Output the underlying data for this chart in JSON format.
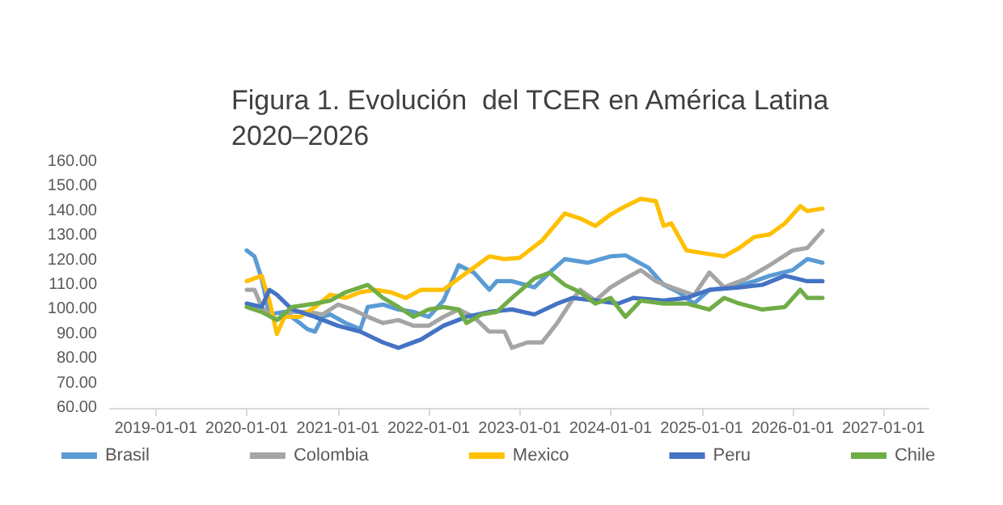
{
  "chart_data": {
    "type": "line",
    "title": "Figura 1. Evolución  del TCER en América Latina\n2020–2026",
    "xlim": [
      "2018-07",
      "2027-07"
    ],
    "xticks": [
      "2019-01-01",
      "2020-01-01",
      "2021-01-01",
      "2022-01-01",
      "2023-01-01",
      "2024-01-01",
      "2025-01-01",
      "2026-01-01",
      "2027-01-01"
    ],
    "ylim": [
      60,
      160
    ],
    "yticks": [
      {
        "value": 60,
        "label": "60.00"
      },
      {
        "value": 70,
        "label": "70.00"
      },
      {
        "value": 80,
        "label": "80.00"
      },
      {
        "value": 90,
        "label": "90.00"
      },
      {
        "value": 100,
        "label": "100.00"
      },
      {
        "value": 110,
        "label": "110.00"
      },
      {
        "value": 120,
        "label": "120.00"
      },
      {
        "value": 130,
        "label": "130.00"
      },
      {
        "value": 140,
        "label": "140.00"
      },
      {
        "value": 150,
        "label": "150.00"
      },
      {
        "value": 160,
        "label": "160.00"
      }
    ],
    "grid": false,
    "legend": "bottom",
    "marker": "none",
    "line_style": "solid",
    "series": [
      {
        "name": "Brasil",
        "color": "#5b9bd5",
        "x": [
          "2020-01",
          "2020-02",
          "2020-03",
          "2020-04",
          "2020-06",
          "2020-08",
          "2020-09",
          "2020-10",
          "2020-11",
          "2020-12",
          "2021-02",
          "2021-04",
          "2021-05",
          "2021-07",
          "2021-09",
          "2021-11",
          "2022-01",
          "2022-03",
          "2022-05",
          "2022-07",
          "2022-09",
          "2022-10",
          "2022-12",
          "2023-03",
          "2023-05",
          "2023-07",
          "2023-10",
          "2024-01",
          "2024-03",
          "2024-06",
          "2024-08",
          "2024-10",
          "2024-12",
          "2025-02",
          "2025-05",
          "2025-08",
          "2025-10",
          "2026-01",
          "2026-03",
          "2026-05"
        ],
        "values": [
          124,
          121.6,
          112.6,
          98,
          99,
          94.5,
          92,
          91,
          97,
          98,
          94.5,
          92,
          101,
          102,
          100,
          99,
          97,
          103.6,
          118,
          115,
          108,
          111.5,
          111.5,
          109,
          115,
          120.5,
          119,
          121.6,
          122,
          117,
          110,
          107,
          102.4,
          108,
          109,
          111.5,
          113.7,
          116,
          120.5,
          119
        ]
      },
      {
        "name": "Colombia",
        "color": "#a5a5a5",
        "x": [
          "2020-01",
          "2020-02",
          "2020-03",
          "2020-05",
          "2020-07",
          "2020-09",
          "2020-11",
          "2021-01",
          "2021-03",
          "2021-05",
          "2021-07",
          "2021-09",
          "2021-11",
          "2022-01",
          "2022-03",
          "2022-05",
          "2022-07",
          "2022-09",
          "2022-11",
          "2022-12",
          "2023-02",
          "2023-04",
          "2023-06",
          "2023-08",
          "2023-09",
          "2023-11",
          "2024-01",
          "2024-03",
          "2024-05",
          "2024-07",
          "2024-09",
          "2024-12",
          "2025-02",
          "2025-04",
          "2025-07",
          "2025-10",
          "2026-01",
          "2026-03",
          "2026-05"
        ],
        "values": [
          108,
          108,
          101,
          95.7,
          99,
          99,
          98,
          102,
          100,
          97,
          94.5,
          95.7,
          93.4,
          93.4,
          97,
          100,
          97,
          91,
          91,
          84.4,
          86.6,
          86.6,
          94.5,
          104,
          108,
          103.6,
          109,
          112.6,
          116,
          111.5,
          109,
          105.8,
          115,
          109,
          112.6,
          118,
          124,
          125,
          132
        ]
      },
      {
        "name": "Mexico",
        "color": "#ffc000",
        "x": [
          "2020-01",
          "2020-03",
          "2020-04",
          "2020-05",
          "2020-06",
          "2020-08",
          "2020-10",
          "2020-12",
          "2021-02",
          "2021-04",
          "2021-06",
          "2021-08",
          "2021-10",
          "2021-12",
          "2022-03",
          "2022-05",
          "2022-07",
          "2022-09",
          "2022-11",
          "2023-01",
          "2023-04",
          "2023-07",
          "2023-09",
          "2023-11",
          "2024-01",
          "2024-03",
          "2024-05",
          "2024-07",
          "2024-08",
          "2024-09",
          "2024-11",
          "2025-01",
          "2025-04",
          "2025-06",
          "2025-08",
          "2025-10",
          "2025-12",
          "2026-02",
          "2026-03",
          "2026-05"
        ],
        "values": [
          111.5,
          113.7,
          103.6,
          90,
          97,
          97,
          101,
          106,
          104.7,
          107,
          108,
          107,
          104.7,
          108,
          108,
          112.6,
          117,
          121.6,
          120.5,
          121,
          128,
          139,
          137,
          134,
          138.6,
          142,
          145,
          144,
          134,
          135,
          124,
          123,
          121.6,
          125,
          129.5,
          130.5,
          135,
          142,
          140,
          141
        ]
      },
      {
        "name": "Peru",
        "color": "#4472c4",
        "x": [
          "2020-01",
          "2020-03",
          "2020-04",
          "2020-05",
          "2020-07",
          "2020-10",
          "2021-01",
          "2021-04",
          "2021-07",
          "2021-09",
          "2021-12",
          "2022-03",
          "2022-06",
          "2022-09",
          "2022-12",
          "2023-03",
          "2023-06",
          "2023-08",
          "2023-11",
          "2024-02",
          "2024-04",
          "2024-08",
          "2024-11",
          "2025-02",
          "2025-06",
          "2025-09",
          "2025-12",
          "2026-03",
          "2026-05"
        ],
        "values": [
          102.4,
          101,
          108,
          106,
          100,
          97,
          93.4,
          91,
          86.6,
          84.4,
          87.8,
          93.4,
          97,
          99,
          100,
          98,
          102.4,
          104.7,
          103.6,
          102.4,
          104.7,
          103.6,
          104.7,
          108,
          109,
          110,
          113.7,
          111.5,
          111.5
        ]
      },
      {
        "name": "Chile",
        "color": "#70ad47",
        "x": [
          "2020-01",
          "2020-03",
          "2020-05",
          "2020-07",
          "2020-10",
          "2020-12",
          "2021-02",
          "2021-05",
          "2021-07",
          "2021-09",
          "2021-11",
          "2022-01",
          "2022-03",
          "2022-05",
          "2022-06",
          "2022-08",
          "2022-10",
          "2022-12",
          "2023-03",
          "2023-05",
          "2023-07",
          "2023-09",
          "2023-11",
          "2024-01",
          "2024-03",
          "2024-05",
          "2024-08",
          "2024-11",
          "2025-02",
          "2025-04",
          "2025-06",
          "2025-09",
          "2025-12",
          "2026-02",
          "2026-03",
          "2026-05"
        ],
        "values": [
          101,
          99,
          95.7,
          101,
          102.4,
          103.6,
          107,
          110,
          104.7,
          101,
          97,
          100,
          101,
          100,
          94.5,
          98,
          99,
          104.7,
          112.6,
          115,
          110,
          107,
          102.4,
          104.7,
          97,
          103.6,
          102.4,
          102.4,
          100,
          104.7,
          102.4,
          100,
          101,
          108,
          104.7,
          104.7
        ]
      }
    ]
  }
}
